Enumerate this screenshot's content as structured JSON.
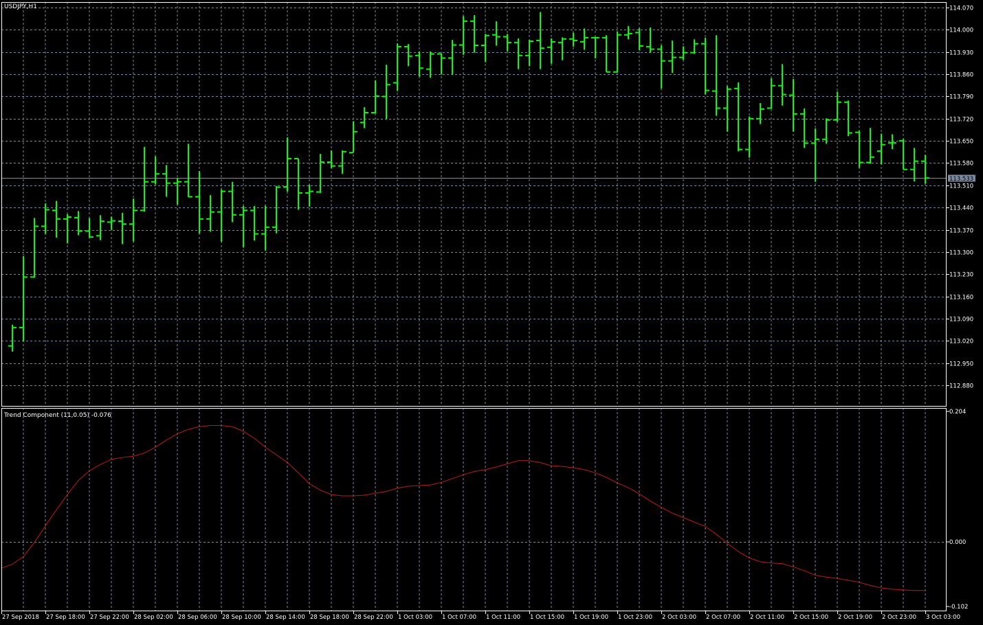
{
  "window": {
    "symbol_title": "USDJPY,H1"
  },
  "colors": {
    "background": "#000000",
    "bars": "#00ff00",
    "grid": "#7b8aa0",
    "axes": "#ffffff",
    "indicator_line": "#c0181c",
    "bid_line": "#8c8c8c",
    "bid_label_bg": "#7b8aa0"
  },
  "chart_data": [
    {
      "type": "ohlc",
      "title": "USDJPY,H1",
      "ylim": [
        112.85,
        114.085
      ],
      "grid": true,
      "y_tick_labels": [
        "114.070",
        "114.000",
        "113.930",
        "113.860",
        "113.790",
        "113.720",
        "113.650",
        "113.580",
        "113.510",
        "113.440",
        "113.370",
        "113.300",
        "113.230",
        "113.160",
        "113.090",
        "113.020",
        "112.950",
        "112.880"
      ],
      "current_price": "113.533",
      "x_tick_labels": [
        "27 Sep 2018",
        "27 Sep 18:00",
        "27 Sep 22:00",
        "28 Sep 02:00",
        "28 Sep 06:00",
        "28 Sep 10:00",
        "28 Sep 14:00",
        "28 Sep 18:00",
        "28 Sep 22:00",
        "1 Oct 03:00",
        "1 Oct 07:00",
        "1 Oct 11:00",
        "1 Oct 15:00",
        "1 Oct 19:00",
        "1 Oct 23:00",
        "2 Oct 03:00",
        "2 Oct 07:00",
        "2 Oct 11:00",
        "2 Oct 15:00",
        "2 Oct 19:00",
        "2 Oct 23:00",
        "3 Oct 03:00"
      ],
      "open": [
        113.004,
        113.062,
        113.221,
        113.381,
        113.431,
        113.404,
        113.408,
        113.366,
        113.351,
        113.394,
        113.397,
        113.388,
        113.431,
        113.521,
        113.546,
        113.517,
        113.521,
        113.474,
        113.404,
        113.426,
        113.491,
        113.417,
        113.431,
        113.357,
        113.378,
        113.505,
        113.594,
        113.486,
        113.489,
        113.583,
        113.571,
        113.613,
        113.708,
        113.739,
        113.79,
        113.833,
        113.947,
        113.919,
        113.876,
        113.924,
        113.911,
        113.952,
        114.027,
        113.951,
        113.984,
        113.978,
        113.96,
        113.919,
        113.966,
        113.945,
        113.96,
        113.971,
        113.962,
        113.975,
        113.975,
        113.867,
        113.984,
        113.991,
        113.947,
        113.939,
        113.902,
        113.913,
        113.928,
        113.956,
        113.807,
        113.753,
        113.815,
        113.623,
        113.72,
        113.753,
        113.824,
        113.794,
        113.735,
        113.643,
        113.655,
        113.716,
        113.772,
        113.677,
        113.582,
        113.618,
        113.644,
        113.65,
        113.56,
        113.586
      ],
      "high": [
        113.071,
        113.287,
        113.407,
        113.453,
        113.461,
        113.419,
        113.429,
        113.407,
        113.416,
        113.411,
        113.423,
        113.468,
        113.631,
        113.601,
        113.574,
        113.532,
        113.641,
        113.555,
        113.479,
        113.497,
        113.521,
        113.445,
        113.445,
        113.446,
        113.508,
        113.661,
        113.594,
        113.512,
        113.609,
        113.62,
        113.62,
        113.712,
        113.756,
        113.841,
        113.89,
        113.957,
        113.955,
        113.932,
        113.932,
        113.925,
        113.968,
        114.043,
        114.046,
        113.987,
        114.027,
        113.987,
        113.973,
        113.968,
        114.056,
        113.973,
        113.976,
        113.991,
        114.004,
        113.978,
        113.983,
        113.994,
        114.012,
        114.005,
        114.007,
        113.951,
        113.966,
        113.948,
        113.97,
        113.975,
        113.983,
        113.823,
        113.834,
        113.727,
        113.769,
        113.847,
        113.892,
        113.845,
        113.752,
        113.689,
        113.721,
        113.805,
        113.777,
        113.682,
        113.691,
        113.673,
        113.671,
        113.656,
        113.628,
        113.606
      ],
      "low": [
        112.986,
        113.018,
        113.219,
        113.357,
        113.345,
        113.327,
        113.353,
        113.345,
        113.337,
        113.37,
        113.325,
        113.333,
        113.427,
        113.513,
        113.474,
        113.449,
        113.473,
        113.358,
        113.364,
        113.332,
        113.394,
        113.314,
        113.336,
        113.305,
        113.359,
        113.49,
        113.433,
        113.443,
        113.486,
        113.564,
        113.546,
        113.613,
        113.69,
        113.737,
        113.719,
        113.807,
        113.885,
        113.852,
        113.849,
        113.859,
        113.859,
        113.921,
        113.928,
        113.898,
        113.95,
        113.932,
        113.876,
        113.885,
        113.876,
        113.893,
        113.904,
        113.947,
        113.937,
        113.91,
        113.867,
        113.867,
        113.97,
        113.935,
        113.928,
        113.815,
        113.864,
        113.905,
        113.924,
        113.796,
        113.729,
        113.679,
        113.617,
        113.597,
        113.703,
        113.751,
        113.761,
        113.679,
        113.628,
        113.521,
        113.641,
        113.71,
        113.665,
        113.565,
        113.578,
        113.576,
        113.624,
        113.56,
        113.522,
        113.515
      ],
      "close": [
        113.062,
        113.221,
        113.381,
        113.433,
        113.404,
        113.41,
        113.366,
        113.347,
        113.397,
        113.398,
        113.388,
        113.431,
        113.521,
        113.546,
        113.517,
        113.521,
        113.474,
        113.404,
        113.426,
        113.491,
        113.417,
        113.431,
        113.357,
        113.378,
        113.504,
        113.594,
        113.486,
        113.491,
        113.583,
        113.571,
        113.616,
        113.679,
        113.739,
        113.791,
        113.827,
        113.947,
        113.917,
        113.879,
        113.924,
        113.911,
        113.952,
        114.027,
        113.951,
        113.982,
        113.978,
        113.96,
        113.919,
        113.964,
        113.942,
        113.962,
        113.971,
        113.966,
        113.975,
        113.975,
        113.867,
        113.984,
        113.988,
        113.949,
        113.939,
        113.902,
        113.913,
        113.928,
        113.956,
        113.809,
        113.753,
        113.813,
        113.623,
        113.72,
        113.75,
        113.824,
        113.796,
        113.735,
        113.643,
        113.655,
        113.716,
        113.772,
        113.675,
        113.582,
        113.599,
        113.638,
        113.644,
        113.56,
        113.586,
        113.533
      ]
    },
    {
      "type": "line",
      "title": "Trend Component (11,0.05) -0.076",
      "ylim": [
        -0.102,
        0.204
      ],
      "y_tick_labels": [
        "0.204",
        "0.000",
        "-0.102"
      ],
      "grid": true,
      "values": [
        -0.035,
        -0.023,
        -0.001,
        0.025,
        0.05,
        0.074,
        0.096,
        0.111,
        0.121,
        0.129,
        0.132,
        0.134,
        0.139,
        0.148,
        0.159,
        0.169,
        0.176,
        0.18,
        0.182,
        0.182,
        0.18,
        0.173,
        0.162,
        0.148,
        0.136,
        0.124,
        0.108,
        0.091,
        0.081,
        0.074,
        0.072,
        0.072,
        0.073,
        0.076,
        0.079,
        0.084,
        0.087,
        0.088,
        0.089,
        0.093,
        0.099,
        0.105,
        0.11,
        0.113,
        0.117,
        0.122,
        0.127,
        0.127,
        0.124,
        0.119,
        0.118,
        0.116,
        0.113,
        0.108,
        0.101,
        0.092,
        0.085,
        0.075,
        0.064,
        0.054,
        0.045,
        0.038,
        0.031,
        0.024,
        0.012,
        -0.002,
        -0.015,
        -0.025,
        -0.031,
        -0.033,
        -0.034,
        -0.039,
        -0.045,
        -0.052,
        -0.055,
        -0.057,
        -0.06,
        -0.063,
        -0.068,
        -0.072,
        -0.074,
        -0.075,
        -0.076,
        -0.076
      ]
    }
  ]
}
